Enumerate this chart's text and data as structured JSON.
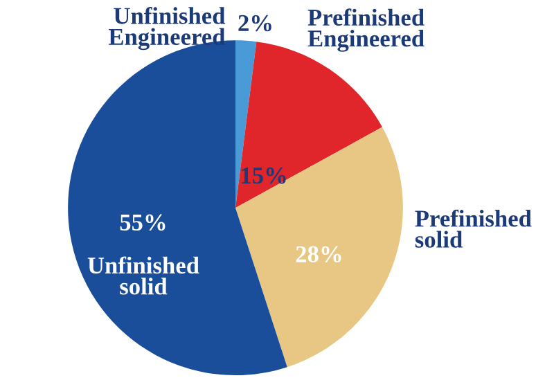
{
  "chart_data": {
    "type": "pie",
    "categories": [
      "Unfinished\nEngineered",
      "Prefinished\nEngineered",
      "Prefinished\nsolid",
      "Unfinished\nsolid"
    ],
    "values": [
      2,
      15,
      28,
      55
    ],
    "colors": [
      "#4a9ad8",
      "#e0262b",
      "#e8c684",
      "#1a4e9a"
    ],
    "value_labels": [
      "2%",
      "15%",
      "28%",
      "55%"
    ]
  }
}
